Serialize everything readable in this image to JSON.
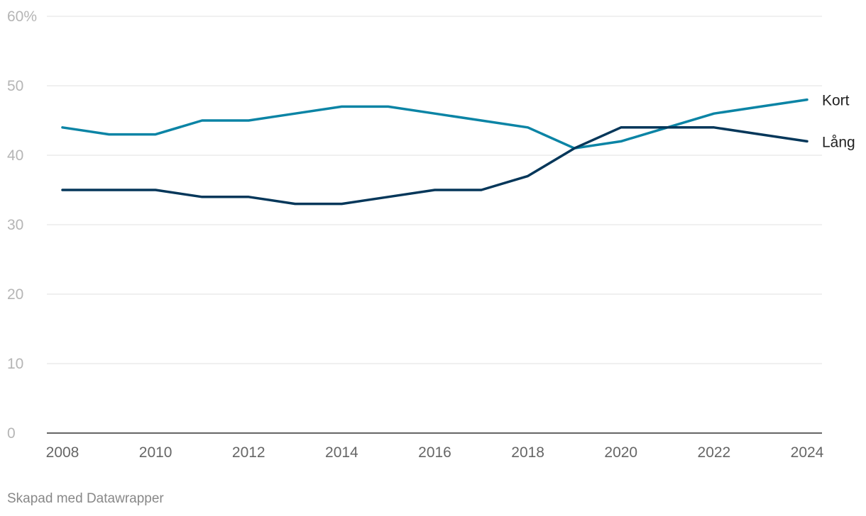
{
  "chart_data": {
    "type": "line",
    "title": "",
    "xlabel": "",
    "ylabel": "",
    "x": [
      2008,
      2009,
      2010,
      2011,
      2012,
      2013,
      2014,
      2015,
      2016,
      2017,
      2018,
      2019,
      2020,
      2021,
      2022,
      2023,
      2024
    ],
    "xticks": [
      2008,
      2010,
      2012,
      2014,
      2016,
      2018,
      2020,
      2022,
      2024
    ],
    "xtick_labels": [
      "2008",
      "2010",
      "2012",
      "2014",
      "2016",
      "2018",
      "2020",
      "2022",
      "2024"
    ],
    "yticks": [
      0,
      10,
      20,
      30,
      40,
      50,
      60
    ],
    "ytick_labels": [
      "0",
      "10",
      "20",
      "30",
      "40",
      "50",
      "60%"
    ],
    "ylim": [
      0,
      60
    ],
    "grid": true,
    "legend": "direct labels at line ends (right)",
    "series": [
      {
        "name": "Kort",
        "color": "#0b84a5",
        "values": [
          44,
          43,
          43,
          45,
          45,
          46,
          47,
          47,
          46,
          45,
          44,
          41,
          42,
          44,
          46,
          47,
          48
        ]
      },
      {
        "name": "Lång",
        "color": "#05375a",
        "values": [
          35,
          35,
          35,
          34,
          34,
          33,
          33,
          34,
          35,
          35,
          37,
          41,
          44,
          44,
          44,
          43,
          42
        ]
      }
    ]
  },
  "footer": {
    "credit": "Skapad med Datawrapper"
  }
}
